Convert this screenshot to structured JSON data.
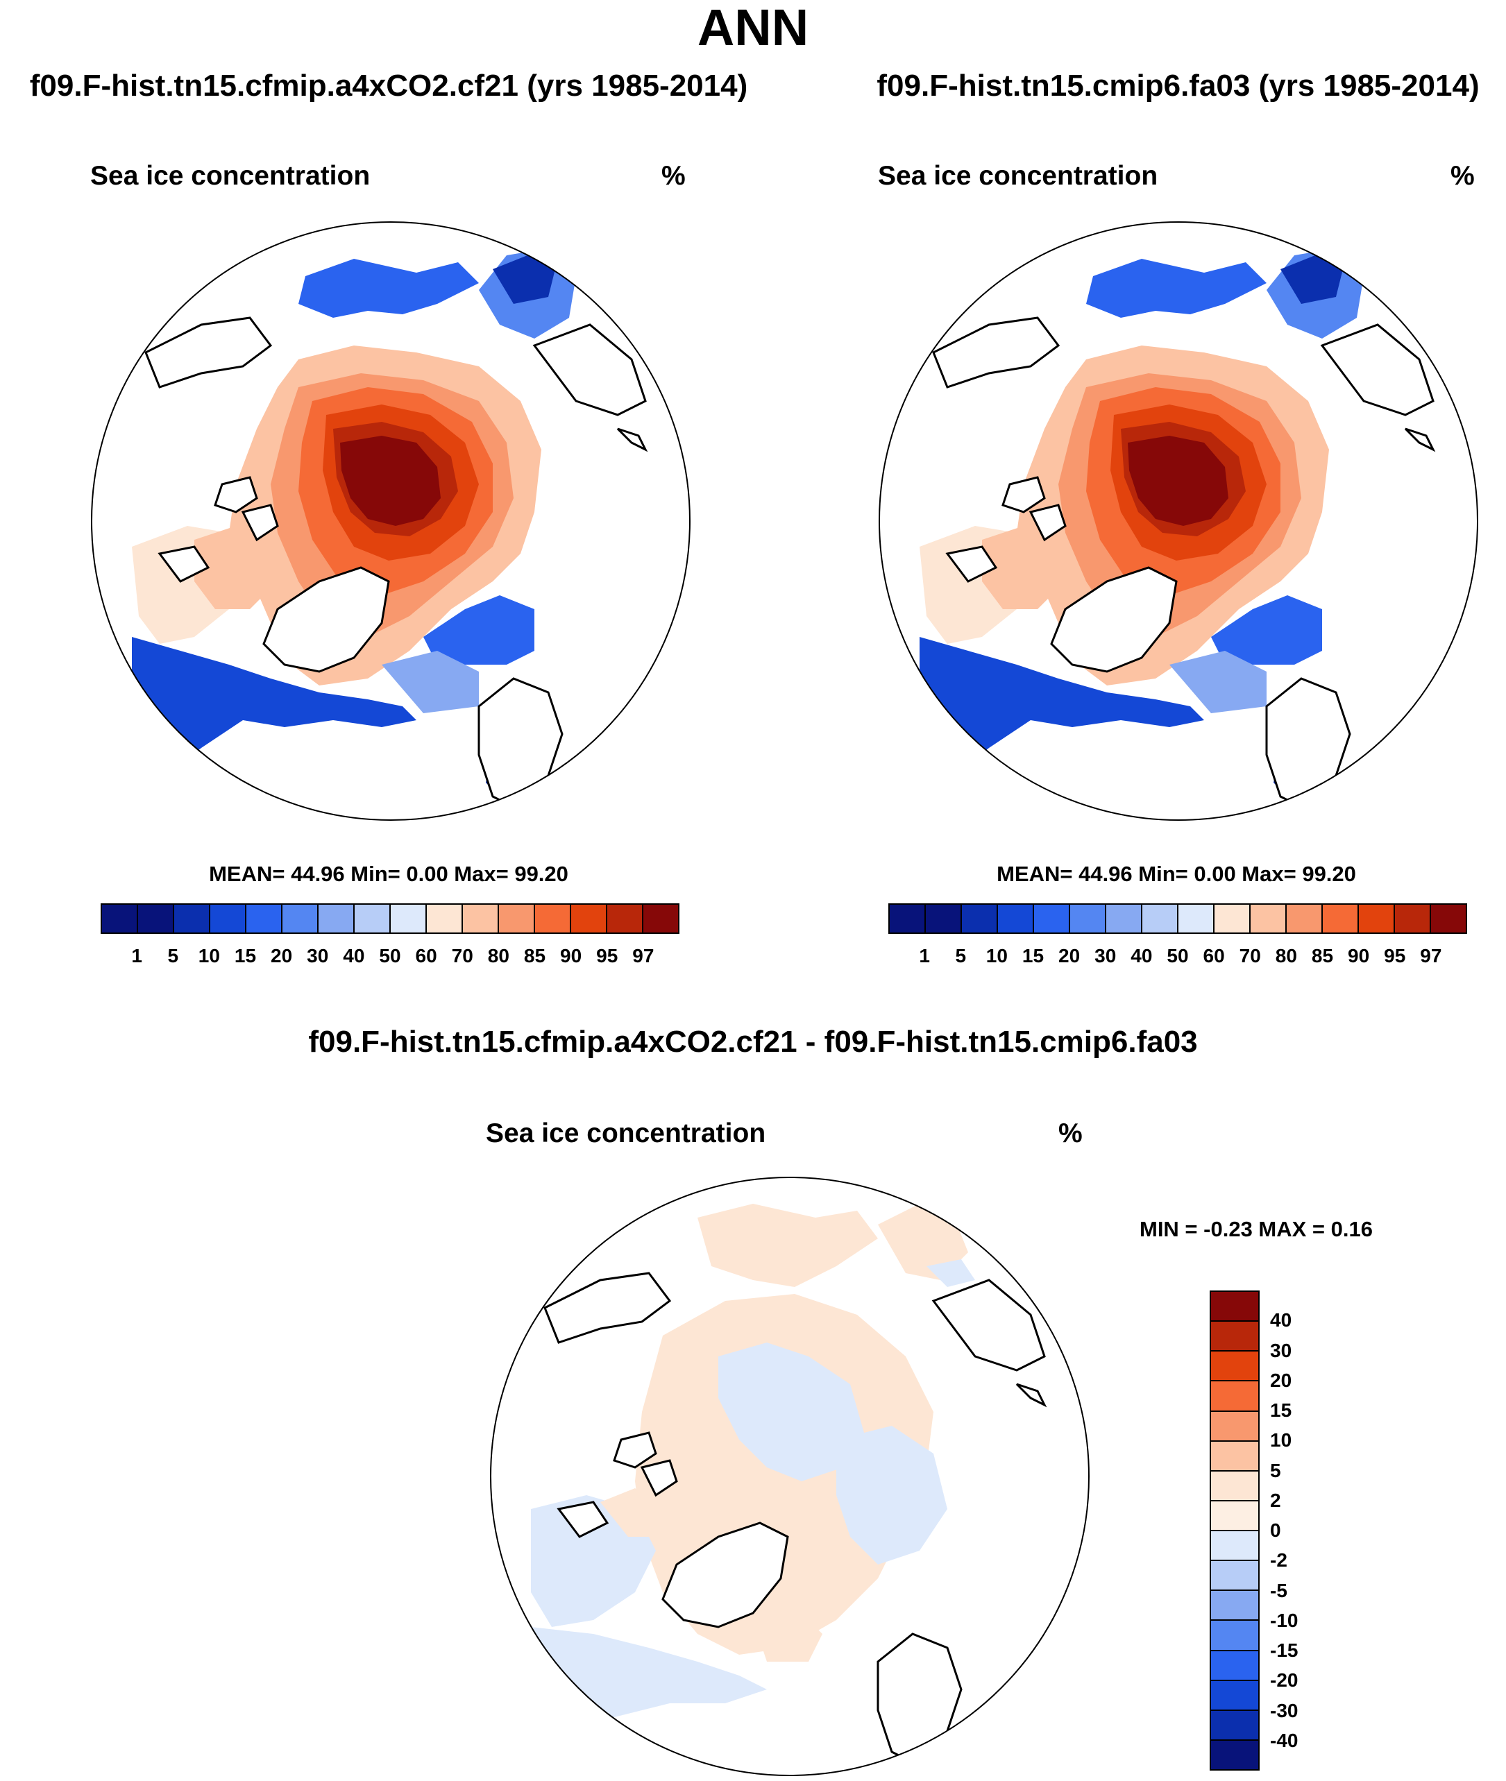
{
  "title": "ANN",
  "panels": [
    {
      "title": "f09.F-hist.tn15.cfmip.a4xCO2.cf21 (yrs 1985-2014)",
      "variable": "Sea ice concentration",
      "units": "%",
      "stats": "MEAN=  44.96  Min=    0.00  Max=  99.20"
    },
    {
      "title": "f09.F-hist.tn15.cmip6.fa03 (yrs 1985-2014)",
      "variable": "Sea ice concentration",
      "units": "%",
      "stats": "MEAN=  44.96  Min=    0.00  Max=  99.20"
    }
  ],
  "diff": {
    "title": "f09.F-hist.tn15.cfmip.a4xCO2.cf21 - f09.F-hist.tn15.cmip6.fa03",
    "variable": "Sea ice concentration",
    "units": "%",
    "stats": "MIN =  -0.23 MAX =   0.16"
  },
  "colorbar_abs": {
    "labels": [
      "1",
      "5",
      "10",
      "15",
      "20",
      "30",
      "40",
      "50",
      "60",
      "70",
      "80",
      "85",
      "90",
      "95",
      "97"
    ],
    "colors": [
      "#08137a",
      "#0b2fae",
      "#1448d6",
      "#2a63ef",
      "#5486f2",
      "#87a9f2",
      "#b7cdf7",
      "#dde9fb",
      "#fde6d4",
      "#fcc3a3",
      "#f8986e",
      "#f56a36",
      "#e2430d",
      "#b8270a",
      "#860808"
    ]
  },
  "colorbar_diff": {
    "labels": [
      "40",
      "30",
      "20",
      "15",
      "10",
      "5",
      "2",
      "0",
      "-2",
      "-5",
      "-10",
      "-15",
      "-20",
      "-30",
      "-40"
    ],
    "colors": [
      "#860808",
      "#b8270a",
      "#e2430d",
      "#f56a36",
      "#f8986e",
      "#fcc3a3",
      "#fde6d4",
      "#fdefe3",
      "#dde9fb",
      "#b7cdf7",
      "#87a9f2",
      "#5486f2",
      "#2a63ef",
      "#1448d6",
      "#0b2fae",
      "#08137a"
    ]
  }
}
